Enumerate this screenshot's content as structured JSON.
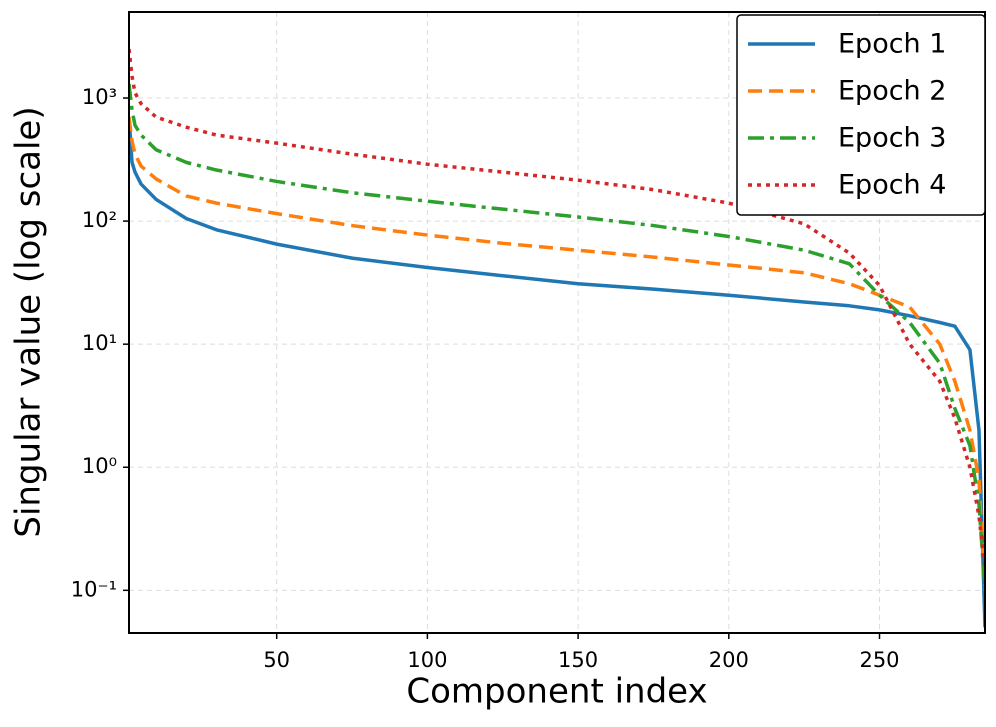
{
  "chart_data": {
    "type": "line",
    "xlabel": "Component index",
    "ylabel": "Singular value (log scale)",
    "log_y": true,
    "grid": true,
    "legend_position": "upper-right",
    "xlim": [
      1,
      285
    ],
    "ylim": [
      0.045,
      5000
    ],
    "xticks": [
      50,
      100,
      150,
      200,
      250
    ],
    "yticks": [
      {
        "value": 0.1,
        "label": "10⁻¹"
      },
      {
        "value": 1,
        "label": "10⁰"
      },
      {
        "value": 10,
        "label": "10¹"
      },
      {
        "value": 100,
        "label": "10²"
      },
      {
        "value": 1000,
        "label": "10³"
      }
    ],
    "x": [
      1,
      2,
      3,
      5,
      10,
      20,
      30,
      50,
      75,
      100,
      125,
      150,
      175,
      200,
      225,
      240,
      250,
      260,
      270,
      275,
      280,
      283,
      285
    ],
    "series": [
      {
        "name": "Epoch 1",
        "color": "#1f77b4",
        "dash": "solid",
        "values": [
          700,
          300,
          250,
          200,
          150,
          105,
          85,
          65,
          50,
          42,
          36,
          31,
          28,
          25,
          22,
          20.5,
          19,
          17,
          15,
          14,
          9,
          2,
          0.05
        ]
      },
      {
        "name": "Epoch 2",
        "color": "#ff7f0e",
        "dash": "dashed",
        "values": [
          700,
          450,
          350,
          280,
          220,
          160,
          140,
          115,
          92,
          77,
          66,
          58,
          51,
          44,
          38,
          31,
          25,
          20,
          10,
          5,
          2,
          0.8,
          0.1
        ]
      },
      {
        "name": "Epoch 3",
        "color": "#2ca02c",
        "dash": "dashdot",
        "values": [
          1300,
          800,
          600,
          500,
          380,
          300,
          260,
          210,
          170,
          145,
          125,
          108,
          92,
          75,
          58,
          45,
          25,
          15,
          7,
          3,
          1.5,
          0.5,
          0.1
        ]
      },
      {
        "name": "Epoch 4",
        "color": "#d62728",
        "dash": "dotted",
        "values": [
          2500,
          1500,
          1100,
          900,
          700,
          580,
          500,
          430,
          350,
          290,
          250,
          215,
          180,
          140,
          95,
          55,
          30,
          10,
          5,
          2.5,
          1,
          0.4,
          0.15
        ]
      }
    ]
  }
}
